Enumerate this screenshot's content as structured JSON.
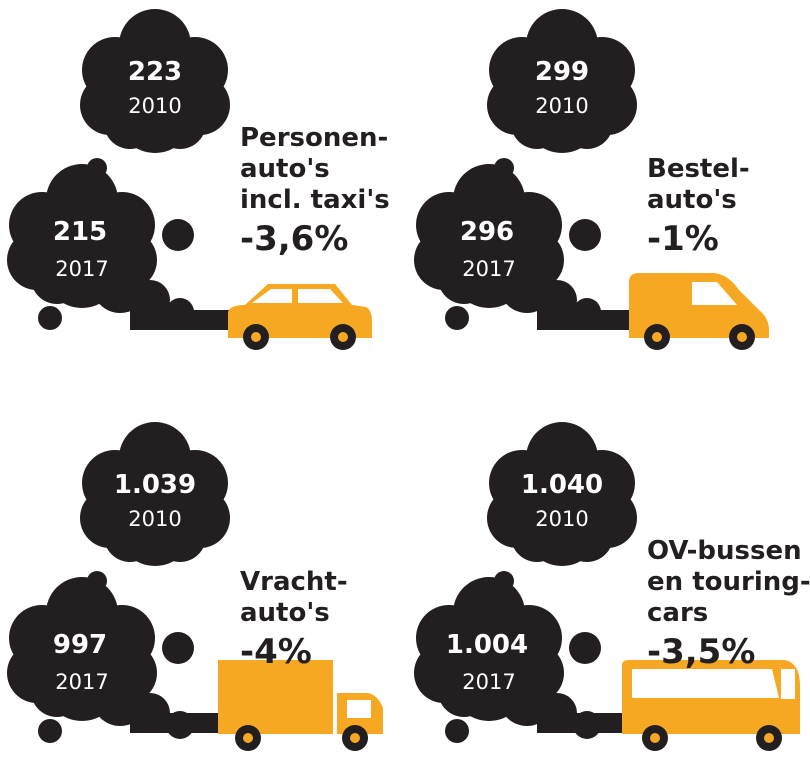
{
  "panels": [
    {
      "top_value": "223",
      "top_year": "2010",
      "bottom_value": "215",
      "bottom_year": "2017",
      "label": [
        "Personen-",
        "auto's",
        "incl. taxi's"
      ],
      "change": "-3,6%"
    },
    {
      "top_value": "299",
      "top_year": "2010",
      "bottom_value": "296",
      "bottom_year": "2017",
      "label": [
        "Bestel-",
        "auto's"
      ],
      "change": "-1%"
    },
    {
      "top_value": "1.039",
      "top_year": "2010",
      "bottom_value": "997",
      "bottom_year": "2017",
      "label": [
        "Vracht-",
        "auto's"
      ],
      "change": "-4%"
    },
    {
      "top_value": "1.040",
      "top_year": "2010",
      "bottom_value": "1.004",
      "bottom_year": "2017",
      "label": [
        "OV-bussen",
        "en touring-",
        "cars"
      ],
      "change": "-3,5%"
    }
  ]
}
